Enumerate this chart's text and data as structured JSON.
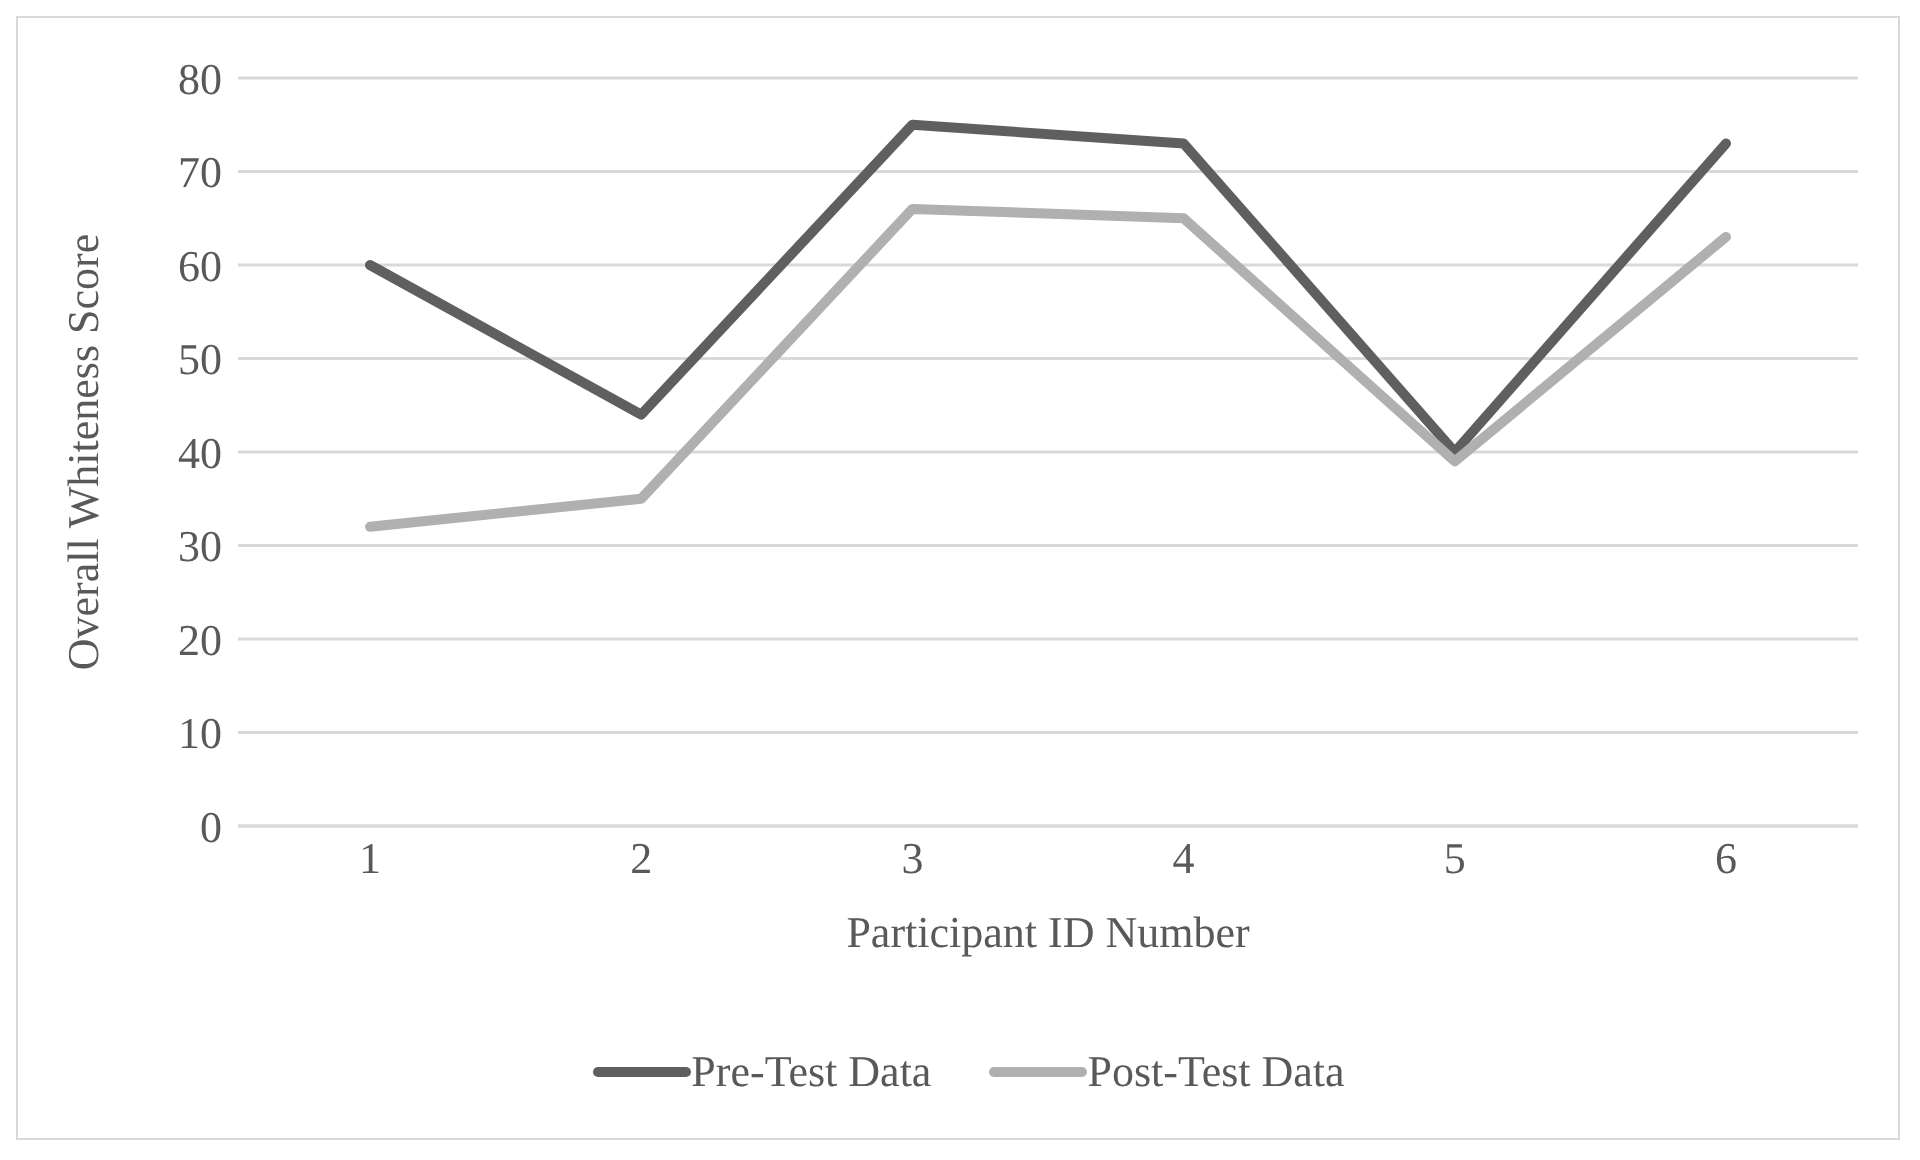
{
  "chart_data": {
    "type": "line",
    "xlabel": "Participant ID Number",
    "ylabel": "Overall Whiteness Score",
    "categories": [
      "1",
      "2",
      "3",
      "4",
      "5",
      "6"
    ],
    "series": [
      {
        "name": "Pre-Test Data",
        "color": "#5f5f5f",
        "values": [
          60,
          44,
          75,
          73,
          40,
          73
        ]
      },
      {
        "name": "Post-Test Data",
        "color": "#b0b0b0",
        "values": [
          32,
          35,
          66,
          65,
          39,
          63
        ]
      }
    ],
    "ylim": [
      0,
      80
    ],
    "yticks": [
      0,
      10,
      20,
      30,
      40,
      50,
      60,
      70,
      80
    ],
    "grid": "y",
    "legend": "bottom",
    "marker": "none",
    "line_style": "solid"
  }
}
